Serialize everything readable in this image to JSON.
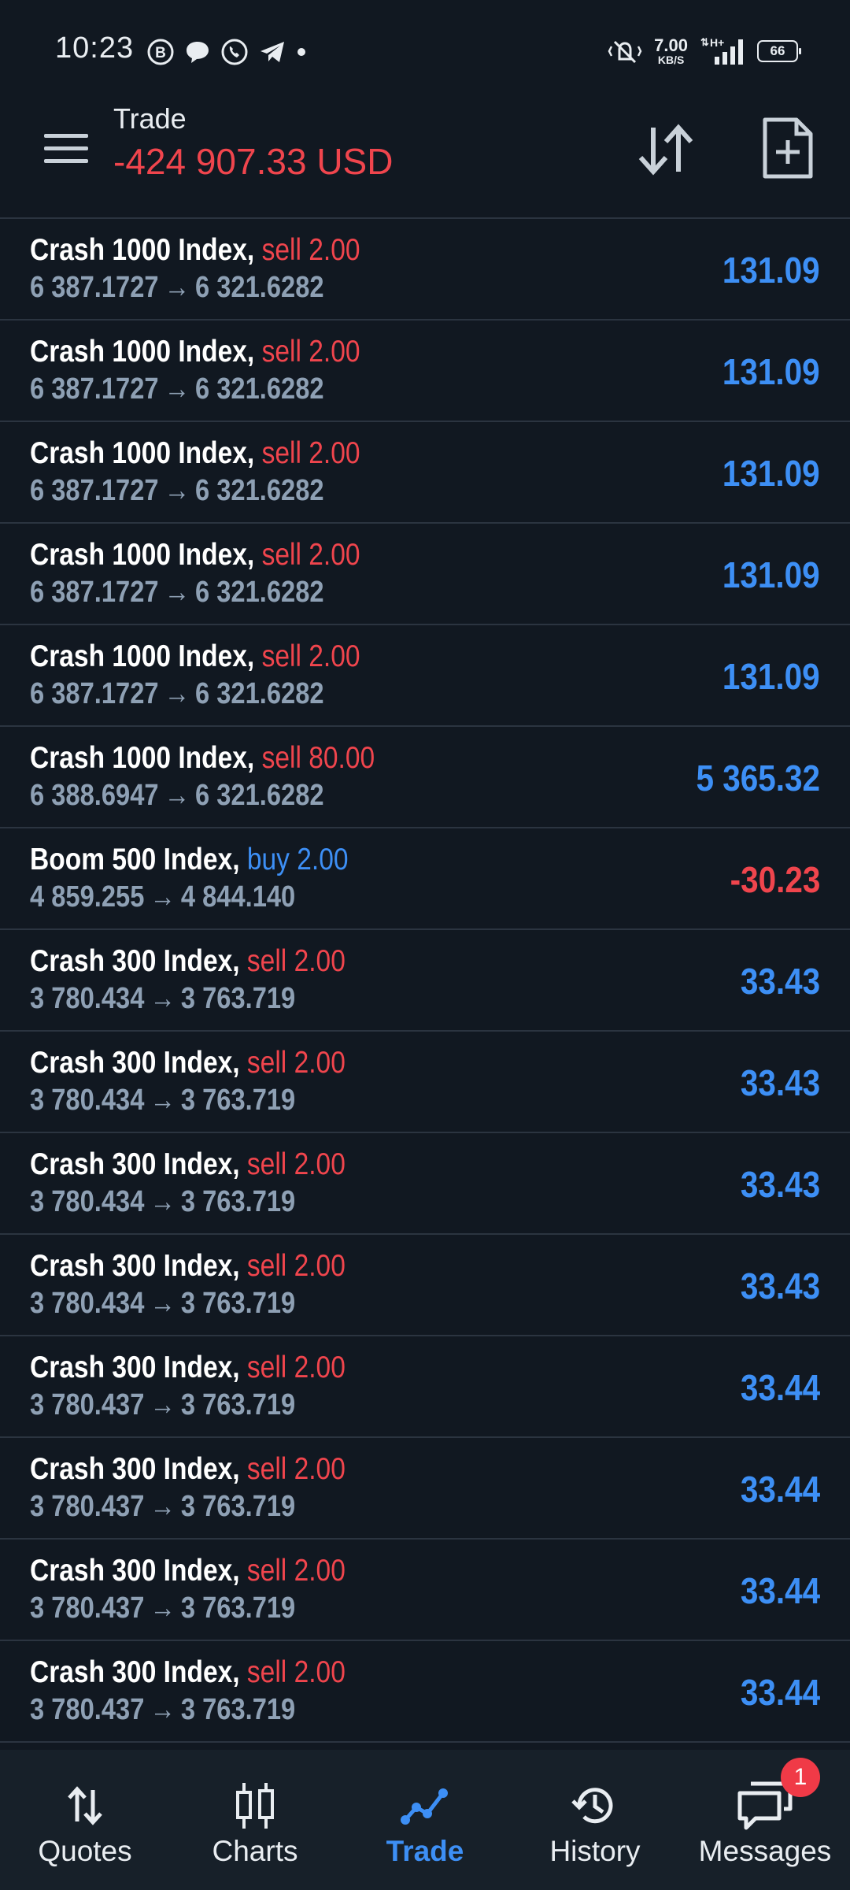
{
  "status_bar": {
    "time": "10:23",
    "net_speed": "7.00",
    "net_unit": "KB/S",
    "network_type": "H+",
    "battery": "66",
    "app_icons": [
      "b-circle-icon",
      "chat-bubble-icon",
      "whatsapp-icon",
      "telegram-icon",
      "dot-icon"
    ]
  },
  "header": {
    "title": "Trade",
    "balance": "-424 907.33 USD"
  },
  "trades": [
    {
      "symbol": "Crash 1000 Index,",
      "side": "sell",
      "volume": "2.00",
      "open": "6 387.1727",
      "arrow": "→",
      "current": "6 321.6282",
      "profit": "131.09",
      "sign": "pos"
    },
    {
      "symbol": "Crash 1000 Index,",
      "side": "sell",
      "volume": "2.00",
      "open": "6 387.1727",
      "arrow": "→",
      "current": "6 321.6282",
      "profit": "131.09",
      "sign": "pos"
    },
    {
      "symbol": "Crash 1000 Index,",
      "side": "sell",
      "volume": "2.00",
      "open": "6 387.1727",
      "arrow": "→",
      "current": "6 321.6282",
      "profit": "131.09",
      "sign": "pos"
    },
    {
      "symbol": "Crash 1000 Index,",
      "side": "sell",
      "volume": "2.00",
      "open": "6 387.1727",
      "arrow": "→",
      "current": "6 321.6282",
      "profit": "131.09",
      "sign": "pos"
    },
    {
      "symbol": "Crash 1000 Index,",
      "side": "sell",
      "volume": "2.00",
      "open": "6 387.1727",
      "arrow": "→",
      "current": "6 321.6282",
      "profit": "131.09",
      "sign": "pos"
    },
    {
      "symbol": "Crash 1000 Index,",
      "side": "sell",
      "volume": "80.00",
      "open": "6 388.6947",
      "arrow": "→",
      "current": "6 321.6282",
      "profit": "5 365.32",
      "sign": "pos"
    },
    {
      "symbol": "Boom 500 Index,",
      "side": "buy",
      "volume": "2.00",
      "open": "4 859.255",
      "arrow": "→",
      "current": "4 844.140",
      "profit": "-30.23",
      "sign": "neg"
    },
    {
      "symbol": "Crash 300 Index,",
      "side": "sell",
      "volume": "2.00",
      "open": "3 780.434",
      "arrow": "→",
      "current": "3 763.719",
      "profit": "33.43",
      "sign": "pos"
    },
    {
      "symbol": "Crash 300 Index,",
      "side": "sell",
      "volume": "2.00",
      "open": "3 780.434",
      "arrow": "→",
      "current": "3 763.719",
      "profit": "33.43",
      "sign": "pos"
    },
    {
      "symbol": "Crash 300 Index,",
      "side": "sell",
      "volume": "2.00",
      "open": "3 780.434",
      "arrow": "→",
      "current": "3 763.719",
      "profit": "33.43",
      "sign": "pos"
    },
    {
      "symbol": "Crash 300 Index,",
      "side": "sell",
      "volume": "2.00",
      "open": "3 780.434",
      "arrow": "→",
      "current": "3 763.719",
      "profit": "33.43",
      "sign": "pos"
    },
    {
      "symbol": "Crash 300 Index,",
      "side": "sell",
      "volume": "2.00",
      "open": "3 780.437",
      "arrow": "→",
      "current": "3 763.719",
      "profit": "33.44",
      "sign": "pos"
    },
    {
      "symbol": "Crash 300 Index,",
      "side": "sell",
      "volume": "2.00",
      "open": "3 780.437",
      "arrow": "→",
      "current": "3 763.719",
      "profit": "33.44",
      "sign": "pos"
    },
    {
      "symbol": "Crash 300 Index,",
      "side": "sell",
      "volume": "2.00",
      "open": "3 780.437",
      "arrow": "→",
      "current": "3 763.719",
      "profit": "33.44",
      "sign": "pos"
    },
    {
      "symbol": "Crash 300 Index,",
      "side": "sell",
      "volume": "2.00",
      "open": "3 780.437",
      "arrow": "→",
      "current": "3 763.719",
      "profit": "33.44",
      "sign": "pos"
    }
  ],
  "bottom_nav": {
    "items": [
      {
        "label": "Quotes",
        "icon": "quotes-arrows-icon"
      },
      {
        "label": "Charts",
        "icon": "candlestick-icon"
      },
      {
        "label": "Trade",
        "icon": "trend-line-icon",
        "active": true
      },
      {
        "label": "History",
        "icon": "history-clock-icon"
      },
      {
        "label": "Messages",
        "icon": "messages-icon",
        "badge": "1"
      }
    ]
  },
  "colors": {
    "background": "#111821",
    "negative": "#f0454d",
    "positive": "#3d8ff5",
    "secondary_text": "#8ea0b4",
    "nav_background": "#172029"
  }
}
